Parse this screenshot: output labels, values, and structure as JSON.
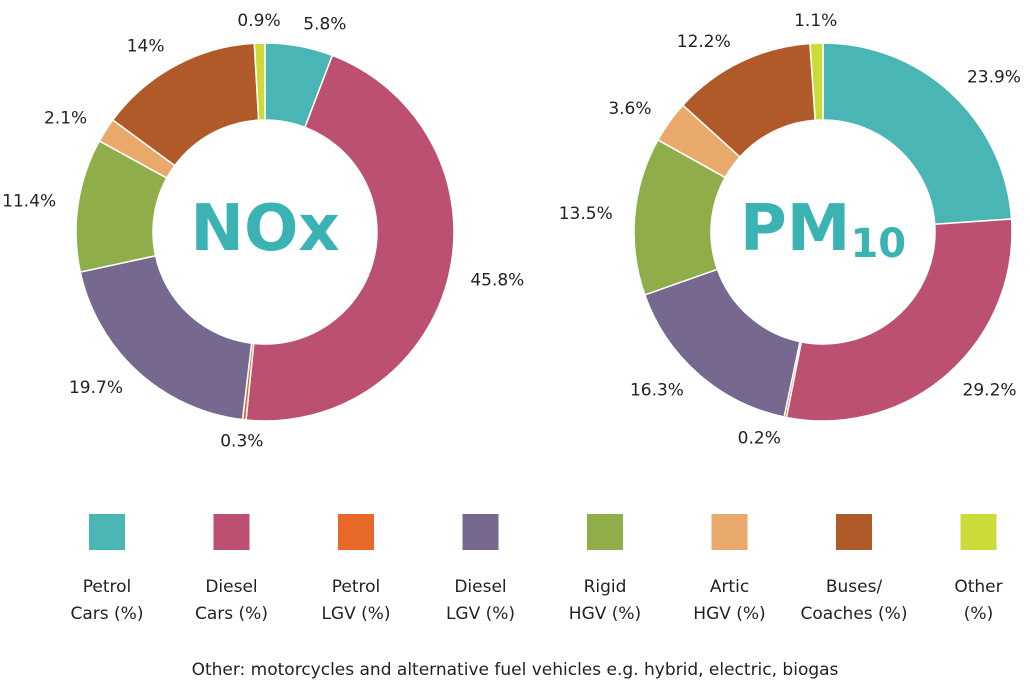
{
  "chart_data": [
    {
      "type": "pie",
      "title": "NOx",
      "values": [
        5.8,
        45.8,
        0.3,
        19.7,
        11.4,
        2.1,
        14,
        0.9
      ],
      "value_labels": [
        "5.8%",
        "45.8%",
        "0.3%",
        "19.7%",
        "11.4%",
        "2.1%",
        "14%",
        "0.9%"
      ]
    },
    {
      "type": "pie",
      "title": "PM",
      "title_subscript": "10",
      "values": [
        23.9,
        29.2,
        0.2,
        16.3,
        13.5,
        3.6,
        12.2,
        1.1
      ],
      "value_labels": [
        "23.9%",
        "29.2%",
        "0.2%",
        "16.3%",
        "13.5%",
        "3.6%",
        "12.2%",
        "1.1%"
      ]
    }
  ],
  "legend": {
    "labels": [
      [
        "Petrol",
        "Cars (%)"
      ],
      [
        "Diesel",
        "Cars (%)"
      ],
      [
        "Petrol",
        "LGV (%)"
      ],
      [
        "Diesel",
        "LGV (%)"
      ],
      [
        "Rigid",
        "HGV (%)"
      ],
      [
        "Artic",
        "HGV (%)"
      ],
      [
        "Buses/",
        "Coaches (%)"
      ],
      [
        "Other",
        "(%)"
      ]
    ],
    "colors": [
      "#4ab5b5",
      "#bb5070",
      "#e8682a",
      "#76688f",
      "#8fae4a",
      "#e8a96a",
      "#b05a2a",
      "#cddb3a"
    ]
  },
  "note": "Other: motorcycles and alternative fuel vehicles e.g. hybrid, electric, biogas"
}
